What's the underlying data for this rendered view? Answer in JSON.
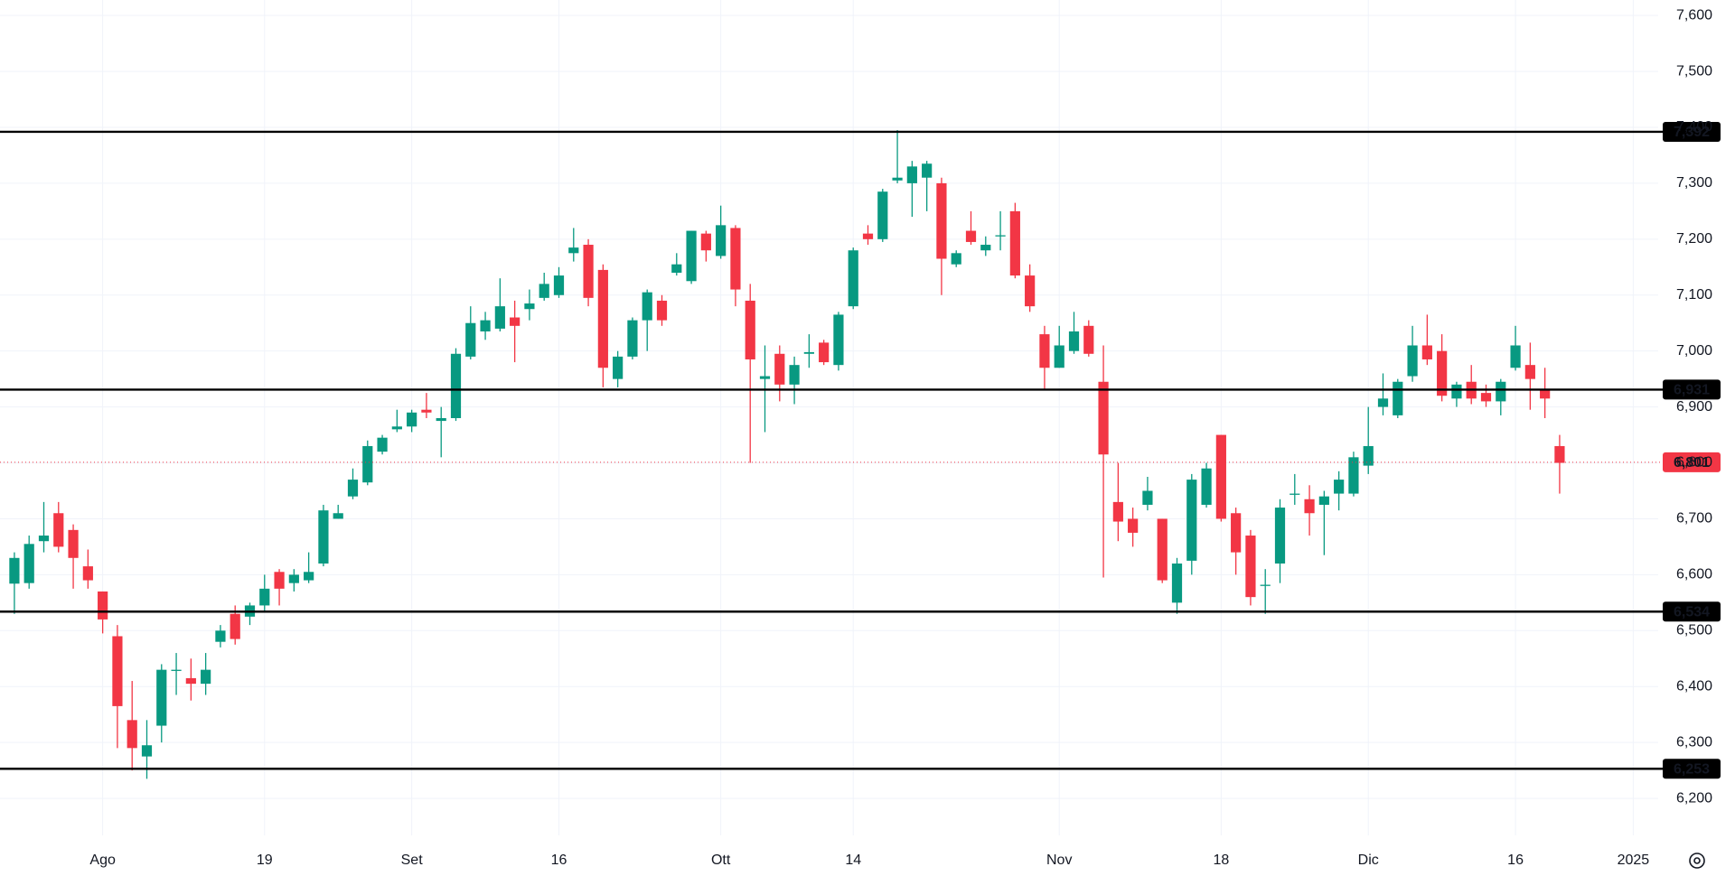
{
  "chart_data": {
    "type": "candlestick",
    "categories": [
      null,
      null,
      null,
      null,
      null,
      null,
      "Ago",
      null,
      null,
      null,
      null,
      null,
      null,
      null,
      null,
      null,
      null,
      "19",
      null,
      null,
      null,
      null,
      null,
      null,
      null,
      null,
      null,
      "Set",
      null,
      null,
      null,
      null,
      null,
      null,
      null,
      null,
      null,
      "16",
      null,
      null,
      null,
      null,
      null,
      null,
      null,
      null,
      null,
      null,
      "Ott",
      null,
      null,
      null,
      null,
      null,
      null,
      null,
      null,
      "14",
      null,
      null,
      null,
      null,
      null,
      null,
      null,
      null,
      null,
      null,
      null,
      null,
      null,
      "Nov",
      null,
      null,
      null,
      null,
      null,
      null,
      null,
      null,
      null,
      null,
      "18",
      null,
      null,
      null,
      null,
      null,
      null,
      null,
      null,
      null,
      "Dic",
      null,
      null,
      null,
      null,
      null,
      null,
      null,
      null,
      null,
      "16",
      null,
      null,
      null,
      null,
      null,
      null,
      null,
      "2025"
    ],
    "open": [
      6584,
      6585,
      6660,
      6710,
      6680,
      6615,
      6570,
      6490,
      6340,
      6275,
      6330,
      6428,
      6415,
      6405,
      6480,
      6530,
      6525,
      6545,
      6605,
      6585,
      6590,
      6620,
      6700,
      6740,
      6765,
      6820,
      6860,
      6865,
      6895,
      6875,
      6880,
      6990,
      7035,
      7040,
      7060,
      7075,
      7095,
      7100,
      7175,
      7190,
      7145,
      6950,
      6990,
      7055,
      7090,
      7140,
      7125,
      7210,
      7170,
      7220,
      7090,
      6950,
      6995,
      6940,
      6995,
      7015,
      6975,
      7080,
      7210,
      7200,
      7305,
      7300,
      7310,
      7300,
      7155,
      7215,
      7180,
      7205,
      7250,
      7135,
      7030,
      6970,
      7000,
      7045,
      6945,
      6730,
      6700,
      6725,
      6700,
      6550,
      6625,
      6725,
      6850,
      6710,
      6670,
      6580,
      6620,
      6745,
      6735,
      6725,
      6745,
      6745,
      6795,
      6900,
      6885,
      6955,
      7010,
      7000,
      6915,
      6945,
      6925,
      6910,
      6970,
      6975,
      6930,
      6830,
      null,
      null,
      null,
      null,
      null
    ],
    "high": [
      6640,
      6670,
      6730,
      6730,
      6690,
      6645,
      6570,
      6510,
      6410,
      6340,
      6440,
      6460,
      6450,
      6460,
      6510,
      6545,
      6550,
      6600,
      6610,
      6610,
      6640,
      6725,
      6725,
      6790,
      6840,
      6850,
      6895,
      6895,
      6925,
      6900,
      7005,
      7080,
      7070,
      7130,
      7090,
      7110,
      7140,
      7150,
      7220,
      7200,
      7155,
      7000,
      7060,
      7110,
      7100,
      7175,
      7215,
      7215,
      7260,
      7225,
      7120,
      7010,
      7010,
      6990,
      7030,
      7020,
      7070,
      7185,
      7225,
      7290,
      7395,
      7340,
      7340,
      7310,
      7180,
      7250,
      7205,
      7250,
      7265,
      7155,
      7045,
      7045,
      7070,
      7055,
      7010,
      6800,
      6720,
      6775,
      6700,
      6630,
      6780,
      6800,
      6850,
      6720,
      6680,
      6610,
      6735,
      6780,
      6760,
      6750,
      6785,
      6820,
      6900,
      6960,
      6950,
      7045,
      7065,
      7030,
      6945,
      6975,
      6940,
      6950,
      7045,
      7015,
      6970,
      6850,
      null,
      null,
      null,
      null,
      null
    ],
    "low": [
      6530,
      6575,
      6640,
      6640,
      6575,
      6575,
      6495,
      6290,
      6250,
      6235,
      6300,
      6385,
      6375,
      6385,
      6470,
      6475,
      6510,
      6535,
      6545,
      6570,
      6585,
      6615,
      6700,
      6735,
      6760,
      6815,
      6855,
      6855,
      6880,
      6810,
      6875,
      6985,
      7020,
      7035,
      6980,
      7055,
      7090,
      7095,
      7160,
      7080,
      6935,
      6935,
      6985,
      7000,
      7045,
      7135,
      7120,
      7160,
      7165,
      7080,
      6800,
      6855,
      6910,
      6905,
      6970,
      6975,
      6965,
      7075,
      7190,
      7195,
      7300,
      7240,
      7250,
      7100,
      7150,
      7190,
      7170,
      7180,
      7130,
      7070,
      6930,
      6970,
      6995,
      6990,
      6595,
      6660,
      6650,
      6715,
      6585,
      6530,
      6600,
      6720,
      6695,
      6600,
      6545,
      6530,
      6585,
      6725,
      6670,
      6635,
      6715,
      6740,
      6780,
      6885,
      6880,
      6945,
      6975,
      6910,
      6900,
      6905,
      6900,
      6885,
      6965,
      6895,
      6880,
      6745,
      null,
      null,
      null,
      null,
      null
    ],
    "close": [
      6630,
      6655,
      6670,
      6650,
      6630,
      6590,
      6520,
      6365,
      6290,
      6295,
      6430,
      6430,
      6405,
      6430,
      6500,
      6485,
      6545,
      6575,
      6575,
      6600,
      6605,
      6715,
      6710,
      6770,
      6830,
      6845,
      6865,
      6890,
      6890,
      6880,
      6995,
      7050,
      7055,
      7080,
      7045,
      7085,
      7120,
      7135,
      7185,
      7095,
      6970,
      6990,
      7055,
      7105,
      7055,
      7155,
      7215,
      7180,
      7225,
      7110,
      6985,
      6955,
      6940,
      6975,
      6998,
      6980,
      7065,
      7180,
      7200,
      7285,
      7310,
      7330,
      7335,
      7165,
      7175,
      7195,
      7190,
      7207,
      7135,
      7080,
      6970,
      7010,
      7035,
      6995,
      6815,
      6695,
      6675,
      6750,
      6590,
      6620,
      6770,
      6790,
      6700,
      6640,
      6560,
      6582,
      6720,
      6745,
      6710,
      6740,
      6770,
      6810,
      6830,
      6915,
      6945,
      7010,
      6985,
      6920,
      6940,
      6915,
      6910,
      6945,
      7010,
      6950,
      6915,
      6800,
      null,
      null,
      null,
      null,
      null
    ],
    "up_color": "#089981",
    "down_color": "#f23645",
    "ylim": [
      6150,
      7620
    ],
    "yticks": [
      {
        "value": 6200,
        "label": "6,200"
      },
      {
        "value": 6300,
        "label": "6,300"
      },
      {
        "value": 6400,
        "label": "6,400"
      },
      {
        "value": 6500,
        "label": "6,500"
      },
      {
        "value": 6600,
        "label": "6,600"
      },
      {
        "value": 6700,
        "label": "6,700"
      },
      {
        "value": 6800,
        "label": "6,800"
      },
      {
        "value": 6900,
        "label": "6,900"
      },
      {
        "value": 7000,
        "label": "7,000"
      },
      {
        "value": 7100,
        "label": "7,100"
      },
      {
        "value": 7200,
        "label": "7,200"
      },
      {
        "value": 7300,
        "label": "7,300"
      },
      {
        "value": 7400,
        "label": "7,400"
      },
      {
        "value": 7500,
        "label": "7,500"
      },
      {
        "value": 7600,
        "label": "7,600"
      }
    ],
    "levels": [
      {
        "value": 7392,
        "label": "7,392"
      },
      {
        "value": 6931,
        "label": "6,931"
      },
      {
        "value": 6534,
        "label": "6,534"
      },
      {
        "value": 6253,
        "label": "6,253"
      }
    ],
    "last_price": {
      "value": 6801,
      "label": "6,801"
    },
    "grid": true
  }
}
